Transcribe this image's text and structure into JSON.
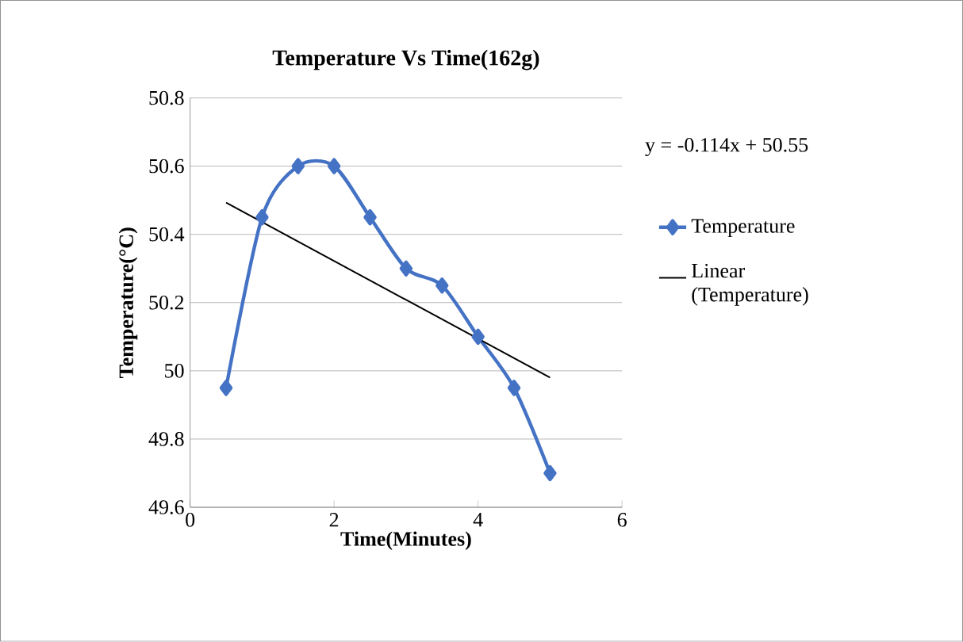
{
  "chart_data": {
    "type": "line",
    "title": "Temperature Vs Time(162g)",
    "xlabel": "Time(Minutes)",
    "ylabel": "Temperature(°C)",
    "xlim": [
      0,
      6
    ],
    "xticks": [
      0,
      2,
      4,
      6
    ],
    "ylim": [
      49.6,
      50.8
    ],
    "yticks": [
      49.6,
      49.8,
      50,
      50.2,
      50.4,
      50.6,
      50.8
    ],
    "grid": "y",
    "legend": "right",
    "annotations": [
      "y = -0.114x + 50.55"
    ],
    "series": [
      {
        "name": "Temperature",
        "color": "#4472c4",
        "marker": "diamond",
        "x": [
          0.5,
          1,
          1.5,
          2,
          2.5,
          3,
          3.5,
          4,
          4.5,
          5
        ],
        "values": [
          49.95,
          50.45,
          50.6,
          50.6,
          50.45,
          50.3,
          50.25,
          50.1,
          49.95,
          49.7
        ]
      },
      {
        "name": "Linear (Temperature)",
        "color": "#000000",
        "marker": "none",
        "x": [
          0.5,
          5
        ],
        "values": [
          50.493,
          49.98
        ]
      }
    ]
  }
}
